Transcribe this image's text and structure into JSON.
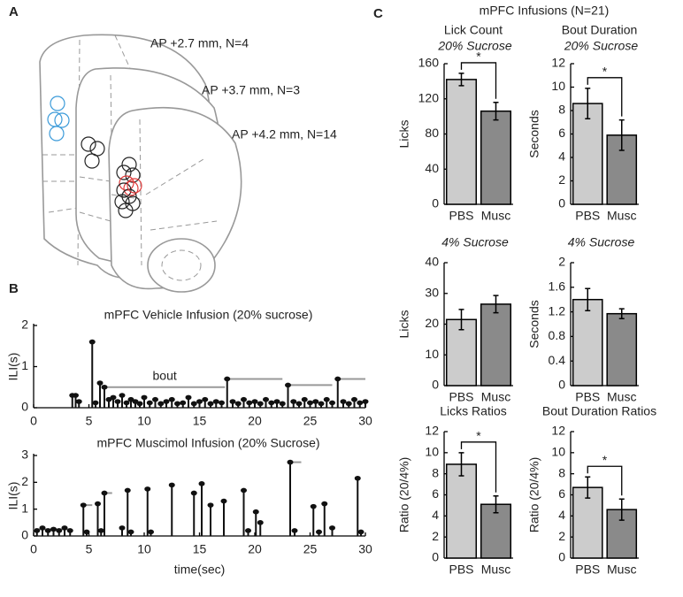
{
  "figure": {
    "panel_labels": [
      "A",
      "B",
      "C"
    ],
    "diagram_labels": [
      "AP +2.7 mm, N=4",
      "AP +3.7 mm, N=3",
      "AP +4.2 mm, N=14"
    ],
    "panel_c_title": "mPFC Infusions (N=21)"
  },
  "chart_data": [
    {
      "type": "stem",
      "title": "mPFC Vehicle Infusion (20% sucrose)",
      "ylabel": "ILI(s)",
      "x": [
        3.5,
        3.8,
        4.1,
        5.3,
        5.6,
        6.0,
        6.4,
        6.8,
        7.2,
        7.6,
        8.0,
        8.4,
        8.8,
        9.2,
        9.6,
        10.0,
        10.5,
        11.0,
        11.5,
        12.0,
        12.5,
        13.0,
        13.5,
        14.0,
        14.5,
        15.0,
        15.5,
        16.0,
        16.5,
        17.0,
        17.5,
        18.0,
        18.5,
        19.0,
        19.5,
        20.0,
        20.5,
        21.0,
        21.5,
        22.0,
        22.5,
        23.0,
        23.5,
        24.0,
        24.5,
        25.0,
        25.5,
        26.0,
        26.5,
        27.0,
        27.5,
        28.0,
        28.5,
        29.0,
        29.5,
        30.0
      ],
      "values": [
        0.3,
        0.3,
        0.15,
        1.6,
        0.12,
        0.6,
        0.5,
        0.2,
        0.25,
        0.15,
        0.3,
        0.12,
        0.2,
        0.15,
        0.1,
        0.25,
        0.12,
        0.2,
        0.1,
        0.15,
        0.2,
        0.1,
        0.12,
        0.25,
        0.1,
        0.15,
        0.2,
        0.1,
        0.15,
        0.12,
        0.7,
        0.15,
        0.1,
        0.2,
        0.12,
        0.15,
        0.1,
        0.2,
        0.12,
        0.15,
        0.1,
        0.55,
        0.15,
        0.1,
        0.2,
        0.12,
        0.15,
        0.1,
        0.2,
        0.12,
        0.7,
        0.15,
        0.1,
        0.2,
        0.12,
        0.15
      ],
      "bouts": [
        {
          "start": 6.4,
          "end": 17.3,
          "y": 0.5
        },
        {
          "start": 17.5,
          "end": 22.5,
          "y": 0.7
        },
        {
          "start": 23.0,
          "end": 27.0,
          "y": 0.55
        },
        {
          "start": 27.5,
          "end": 30.0,
          "y": 0.7
        }
      ],
      "annotation": "bout",
      "color": "#111111",
      "bout_color": "#999999",
      "xlim": [
        0,
        30
      ],
      "xticks": [
        0,
        5,
        10,
        15,
        20,
        25,
        30
      ],
      "ylim": [
        0,
        2
      ],
      "yticks": [
        0,
        1,
        2
      ]
    },
    {
      "type": "stem",
      "title": "mPFC Muscimol Infusion (20% Sucrose)",
      "ylabel": "ILI(s)",
      "xlabel": "time(sec)",
      "x": [
        0.3,
        0.8,
        1.3,
        1.8,
        2.3,
        2.8,
        3.3,
        4.5,
        4.8,
        5.8,
        6.1,
        6.4,
        8.0,
        8.5,
        8.8,
        10.3,
        10.6,
        12.5,
        14.5,
        15.2,
        16.0,
        17.2,
        19.0,
        19.4,
        20.1,
        20.5,
        23.2,
        23.6,
        25.3,
        25.8,
        26.3,
        27.0,
        29.3,
        29.6
      ],
      "values": [
        0.2,
        0.3,
        0.2,
        0.25,
        0.2,
        0.3,
        0.2,
        1.15,
        0.15,
        1.2,
        0.2,
        1.6,
        0.3,
        1.7,
        0.15,
        1.75,
        0.15,
        1.9,
        1.6,
        1.95,
        1.15,
        1.3,
        1.7,
        0.2,
        0.9,
        0.5,
        2.75,
        0.2,
        1.1,
        0.15,
        1.2,
        0.3,
        2.15,
        0.15
      ],
      "bouts": [
        {
          "start": 0,
          "end": 3.3,
          "y": 0.25
        },
        {
          "start": 4.5,
          "end": 5.3,
          "y": 1.15
        },
        {
          "start": 6.4,
          "end": 7.1,
          "y": 1.6
        },
        {
          "start": 23.2,
          "end": 24.2,
          "y": 2.75
        }
      ],
      "color": "#111111",
      "bout_color": "#999999",
      "xlim": [
        0,
        30
      ],
      "xticks": [
        0,
        5,
        10,
        15,
        20,
        25,
        30
      ],
      "ylim": [
        0,
        3
      ],
      "yticks": [
        0,
        1,
        2,
        3
      ]
    },
    {
      "type": "bar",
      "title": "Lick Count",
      "subtitle": "20% Sucrose",
      "ylabel": "Licks",
      "categories": [
        "PBS",
        "Musc"
      ],
      "values": [
        142,
        106
      ],
      "errors": [
        7,
        10
      ],
      "colors": [
        "#cccccc",
        "#8a8a8a"
      ],
      "annotation": "*",
      "ylim": [
        0,
        160
      ],
      "yticks": [
        0,
        40,
        80,
        120,
        160
      ]
    },
    {
      "type": "bar",
      "title": "Bout Duration",
      "subtitle": "20% Sucrose",
      "ylabel": "Seconds",
      "categories": [
        "PBS",
        "Musc"
      ],
      "values": [
        8.6,
        5.9
      ],
      "errors": [
        1.3,
        1.3
      ],
      "colors": [
        "#cccccc",
        "#8a8a8a"
      ],
      "annotation": "*",
      "ylim": [
        0,
        12
      ],
      "yticks": [
        0,
        2,
        4,
        6,
        8,
        10,
        12
      ]
    },
    {
      "type": "bar",
      "subtitle": "4% Sucrose",
      "ylabel": "Licks",
      "categories": [
        "PBS",
        "Musc"
      ],
      "values": [
        21.5,
        26.5
      ],
      "errors": [
        3.3,
        2.8
      ],
      "colors": [
        "#cccccc",
        "#8a8a8a"
      ],
      "ylim": [
        0,
        40
      ],
      "yticks": [
        0,
        10,
        20,
        30,
        40
      ]
    },
    {
      "type": "bar",
      "subtitle": "4% Sucrose",
      "ylabel": "Seconds",
      "categories": [
        "PBS",
        "Musc"
      ],
      "values": [
        1.4,
        1.17
      ],
      "errors": [
        0.18,
        0.08
      ],
      "colors": [
        "#cccccc",
        "#8a8a8a"
      ],
      "ylim": [
        0,
        2
      ],
      "yticks": [
        0,
        0.4,
        0.8,
        1.2,
        1.6,
        2
      ]
    },
    {
      "type": "bar",
      "title": "Licks Ratios",
      "ylabel": "Ratio (20/4%)",
      "categories": [
        "PBS",
        "Musc"
      ],
      "values": [
        8.9,
        5.1
      ],
      "errors": [
        1.1,
        0.8
      ],
      "colors": [
        "#cccccc",
        "#8a8a8a"
      ],
      "annotation": "*",
      "ylim": [
        0,
        12
      ],
      "yticks": [
        0,
        2,
        4,
        6,
        8,
        10,
        12
      ]
    },
    {
      "type": "bar",
      "title": "Bout Duration Ratios",
      "ylabel": "Ratio (20/4%)",
      "categories": [
        "PBS",
        "Musc"
      ],
      "values": [
        6.7,
        4.6
      ],
      "errors": [
        1.0,
        1.0
      ],
      "colors": [
        "#cccccc",
        "#8a8a8a"
      ],
      "annotation": "*",
      "ylim": [
        0,
        12
      ],
      "yticks": [
        0,
        2,
        4,
        6,
        8,
        10,
        12
      ]
    }
  ]
}
